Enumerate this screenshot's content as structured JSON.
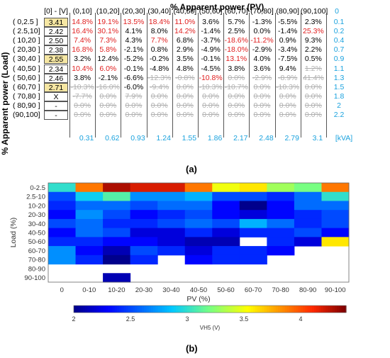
{
  "panel_a": {
    "label": "(a)",
    "title": "% Apparent power (PV)",
    "ylabel": "% Apparent power (Load)",
    "corner_header": "[0] - [V]",
    "col_headers": [
      "(0,10]",
      "(10,20]",
      "(20,30]",
      "(30,40]",
      "(40,50]",
      "(50,60]",
      "(60,70]",
      "(70,80]",
      "(80,90]",
      "(90,100]"
    ],
    "right_header": "0",
    "rows": [
      {
        "label": "( 0,2.5 ]",
        "v0": "3.41",
        "hl": true,
        "cells": [
          "14.8%",
          "19.1%",
          "13.5%",
          "18.4%",
          "11.0%",
          "3.6%",
          "5.7%",
          "-1.3%",
          "-5.5%",
          "2.3%"
        ],
        "styles": [
          "r",
          "r",
          "r",
          "r",
          "r",
          "k",
          "k",
          "k",
          "k",
          "k"
        ],
        "right": "0.1"
      },
      {
        "label": "( 2.5,10]",
        "v0": "2.42",
        "hl": false,
        "cells": [
          "16.4%",
          "30.1%",
          "4.1%",
          "8.0%",
          "14.2%",
          "-1.4%",
          "2.5%",
          "0.0%",
          "-1.4%",
          "25.3%"
        ],
        "styles": [
          "r",
          "r",
          "k",
          "k",
          "r",
          "k",
          "k",
          "k",
          "k",
          "r"
        ],
        "right": "0.2"
      },
      {
        "label": "( 10,20 ]",
        "v0": "2.50",
        "hl": false,
        "cells": [
          "7.4%",
          "7.3%",
          "4.3%",
          "7.7%",
          "6.8%",
          "-3.7%",
          "-18.6%",
          "-11.2%",
          "0.9%",
          "9.3%"
        ],
        "styles": [
          "r",
          "r",
          "k",
          "r",
          "k",
          "k",
          "r",
          "r",
          "k",
          "k"
        ],
        "right": "0.4"
      },
      {
        "label": "( 20,30 ]",
        "v0": "2.38",
        "hl": false,
        "cells": [
          "16.8%",
          "5.8%",
          "-2.1%",
          "0.8%",
          "2.9%",
          "-4.9%",
          "-18.0%",
          "-2.9%",
          "-3.4%",
          "2.2%"
        ],
        "styles": [
          "r",
          "r",
          "k",
          "k",
          "k",
          "k",
          "r",
          "k",
          "k",
          "k"
        ],
        "right": "0.7"
      },
      {
        "label": "( 30,40 ]",
        "v0": "2.55",
        "hl": true,
        "cells": [
          "3.2%",
          "12.4%",
          "-5.2%",
          "-0.2%",
          "3.5%",
          "-0.1%",
          "13.1%",
          "4.0%",
          "-7.5%",
          "0.5%"
        ],
        "styles": [
          "k",
          "k",
          "k",
          "k",
          "k",
          "k",
          "r",
          "k",
          "k",
          "k"
        ],
        "right": "0.9"
      },
      {
        "label": "( 40,50 ]",
        "v0": "2.34",
        "hl": false,
        "cells": [
          "10.4%",
          "6.0%",
          "-0.1%",
          "-4.8%",
          "4.8%",
          "-4.5%",
          "3.8%",
          "3.6%",
          "9.4%",
          "1.2%"
        ],
        "styles": [
          "r",
          "r",
          "k",
          "k",
          "k",
          "k",
          "k",
          "k",
          "k",
          "g"
        ],
        "right": "1.1"
      },
      {
        "label": "( 50,60 ]",
        "v0": "2.46",
        "hl": false,
        "cells": [
          "3.8%",
          "-2.1%",
          "-6.6%",
          "-12.3%",
          "-0.8%",
          "-10.8%",
          "0.0%",
          "-2.9%",
          "-8.9%",
          "41.4%"
        ],
        "styles": [
          "k",
          "k",
          "k",
          "g",
          "g",
          "r",
          "g",
          "g",
          "g",
          "g"
        ],
        "right": "1.3"
      },
      {
        "label": "( 60,70 ]",
        "v0": "2.71",
        "hl": true,
        "cells": [
          "-10.3%",
          "-16.0%",
          "-6.0%",
          "-9.4%",
          "0.0%",
          "-10.3%",
          "-10.7%",
          "0.0%",
          "-10.3%",
          "0.0%"
        ],
        "styles": [
          "g",
          "g",
          "k",
          "g",
          "g",
          "g",
          "g",
          "g",
          "g",
          "g"
        ],
        "right": "1.5"
      },
      {
        "label": "( 70,80 ]",
        "v0": "X",
        "hl": false,
        "cells": [
          "-7.7%",
          "0.0%",
          "7.9%",
          "0.0%",
          "0.0%",
          "0.0%",
          "0.0%",
          "0.0%",
          "0.0%",
          "0.0%"
        ],
        "styles": [
          "g",
          "g",
          "g",
          "g",
          "g",
          "g",
          "g",
          "g",
          "g",
          "g"
        ],
        "right": "1.8"
      },
      {
        "label": "( 80,90 ]",
        "v0": "-",
        "hl": false,
        "cells": [
          "0.0%",
          "0.0%",
          "0.0%",
          "0.0%",
          "0.0%",
          "0.0%",
          "0.0%",
          "0.0%",
          "0.0%",
          "0.0%"
        ],
        "styles": [
          "g",
          "g",
          "g",
          "g",
          "g",
          "g",
          "g",
          "g",
          "g",
          "g"
        ],
        "right": "2"
      },
      {
        "label": "(90,100]",
        "v0": "-",
        "hl": false,
        "cells": [
          "0.0%",
          "0.0%",
          "0.0%",
          "0.0%",
          "0.0%",
          "0.0%",
          "0.0%",
          "0.0%",
          "0.0%",
          "0.0%"
        ],
        "styles": [
          "g",
          "g",
          "g",
          "g",
          "g",
          "g",
          "g",
          "g",
          "g",
          "g"
        ],
        "right": "2.2"
      }
    ],
    "bottom_values": [
      "0.31",
      "0.62",
      "0.93",
      "1.24",
      "1.55",
      "1.86",
      "2.17",
      "2.48",
      "2.79",
      "3.1"
    ],
    "bottom_unit": "[kVA]",
    "colors": {
      "red": "#e01e1e",
      "cyan": "#1aa2de",
      "highlight": "#f6e7a3",
      "strike": "#b0b0b0"
    }
  },
  "chart_data": {
    "type": "heatmap",
    "label": "(b)",
    "xlabel": "PV (%)",
    "ylabel": "Load (%)",
    "colorbar_label": "VH5 (V)",
    "x": [
      "0",
      "0-10",
      "10-20",
      "20-30",
      "30-40",
      "40-50",
      "50-60",
      "60-70",
      "70-80",
      "80-90",
      "90-100"
    ],
    "y": [
      "0-2.5",
      "2.5-10",
      "10-20",
      "20-30",
      "30-40",
      "40-50",
      "50-60",
      "60-70",
      "70-80",
      "80-90",
      "90-100"
    ],
    "zlim": [
      2.0,
      4.4
    ],
    "colorbar_ticks": [
      "2",
      "2.5",
      "3",
      "3.5",
      "4"
    ],
    "z": [
      [
        3.0,
        3.9,
        4.3,
        4.2,
        4.2,
        3.9,
        3.5,
        3.6,
        3.3,
        3.2,
        3.9
      ],
      [
        2.5,
        2.9,
        3.1,
        2.7,
        2.7,
        2.8,
        2.5,
        2.5,
        2.4,
        2.6,
        3.0
      ],
      [
        2.4,
        2.6,
        2.6,
        2.5,
        2.6,
        2.6,
        2.3,
        2.0,
        2.3,
        2.6,
        2.6
      ],
      [
        2.3,
        2.7,
        2.5,
        2.3,
        2.4,
        2.5,
        2.3,
        2.2,
        2.3,
        2.4,
        2.5
      ],
      [
        2.5,
        2.6,
        2.4,
        2.4,
        2.5,
        2.6,
        2.5,
        2.8,
        2.6,
        2.4,
        2.5
      ],
      [
        2.3,
        2.6,
        2.5,
        2.2,
        2.2,
        2.4,
        2.2,
        2.4,
        2.4,
        2.5,
        2.3
      ],
      [
        2.4,
        2.4,
        2.3,
        2.3,
        2.2,
        2.1,
        2.1,
        null,
        2.4,
        2.2,
        3.6
      ],
      [
        2.7,
        2.3,
        2.1,
        2.5,
        2.4,
        2.2,
        2.4,
        2.4,
        2.3,
        null,
        null
      ],
      [
        2.7,
        2.4,
        2.0,
        2.4,
        null,
        2.3,
        2.4,
        2.4,
        null,
        null,
        null
      ],
      [
        null,
        null,
        null,
        null,
        null,
        null,
        null,
        null,
        null,
        null,
        null
      ],
      [
        null,
        null,
        2.1,
        null,
        null,
        null,
        null,
        null,
        null,
        null,
        null
      ]
    ]
  }
}
